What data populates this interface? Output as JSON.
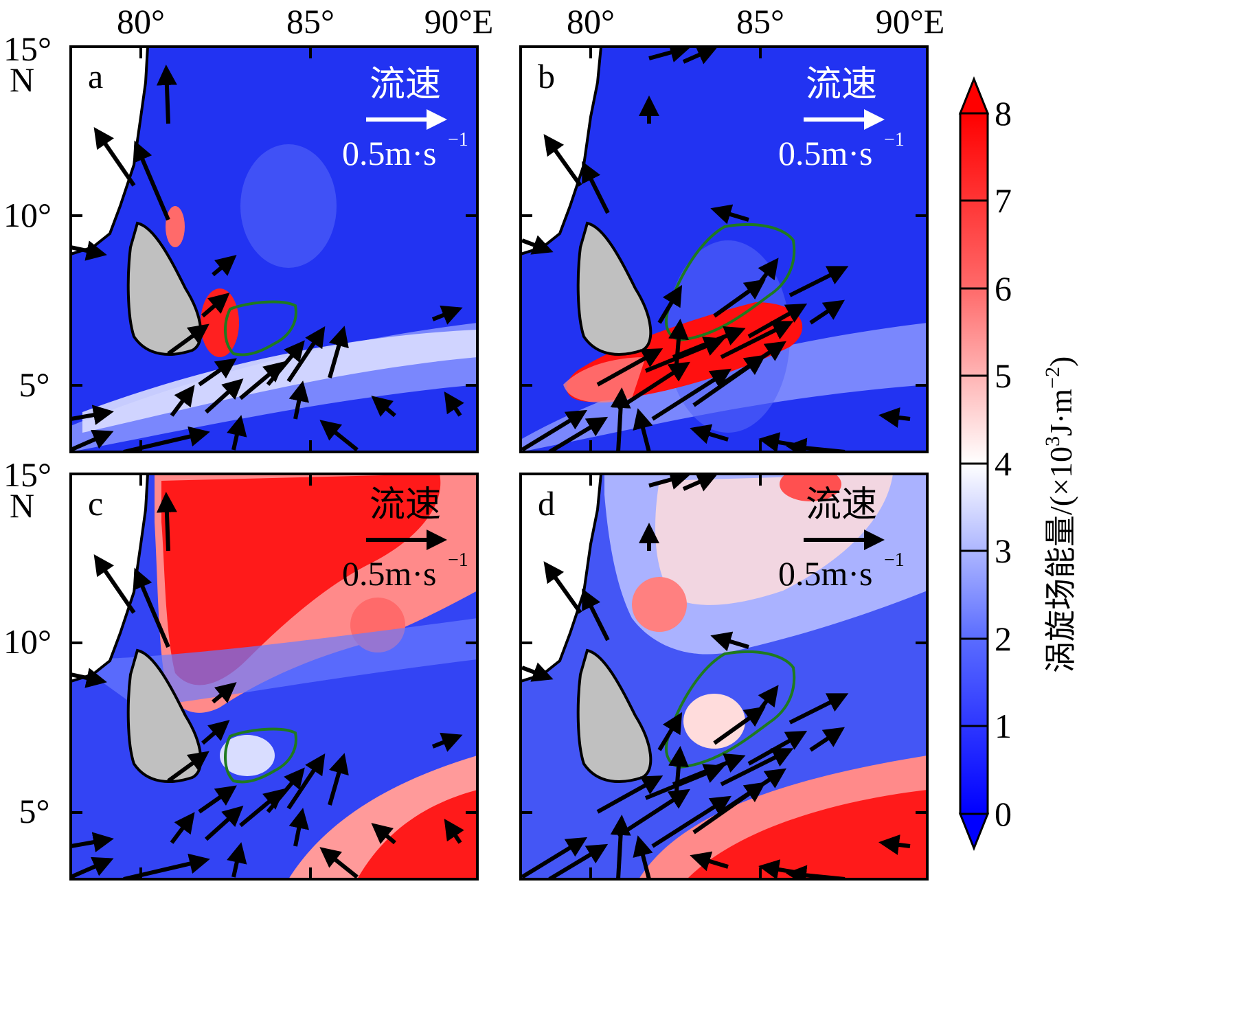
{
  "x_ticks": [
    "80°",
    "85°",
    "90°E"
  ],
  "y_ticks": [
    "15°",
    "N",
    "10°",
    "5°"
  ],
  "panels": [
    {
      "letter": "a",
      "ref_label": "流速",
      "ref_value": "0.5m·s",
      "ref_exp": "−1",
      "ref_color": "#ffffff"
    },
    {
      "letter": "b",
      "ref_label": "流速",
      "ref_value": "0.5m·s",
      "ref_exp": "−1",
      "ref_color": "#ffffff"
    },
    {
      "letter": "c",
      "ref_label": "流速",
      "ref_value": "0.5m·s",
      "ref_exp": "−1",
      "ref_color": "#000000"
    },
    {
      "letter": "d",
      "ref_label": "流速",
      "ref_value": "0.5m·s",
      "ref_exp": "−1",
      "ref_color": "#000000"
    }
  ],
  "colorbar": {
    "ticks": [
      "0",
      "1",
      "2",
      "3",
      "4",
      "5",
      "6",
      "7",
      "8"
    ],
    "label_main": "涡旋场能量/(×10",
    "label_sup": "3",
    "label_mid": "J·m",
    "label_sup2": "−2",
    "label_end": ")",
    "low_color": "#0000ff",
    "mid_color": "#ffffff",
    "high_color": "#ff0000"
  },
  "colors": {
    "land": "#c0c0c0",
    "contour": "#1f7a1f",
    "arrow": "#000000"
  }
}
